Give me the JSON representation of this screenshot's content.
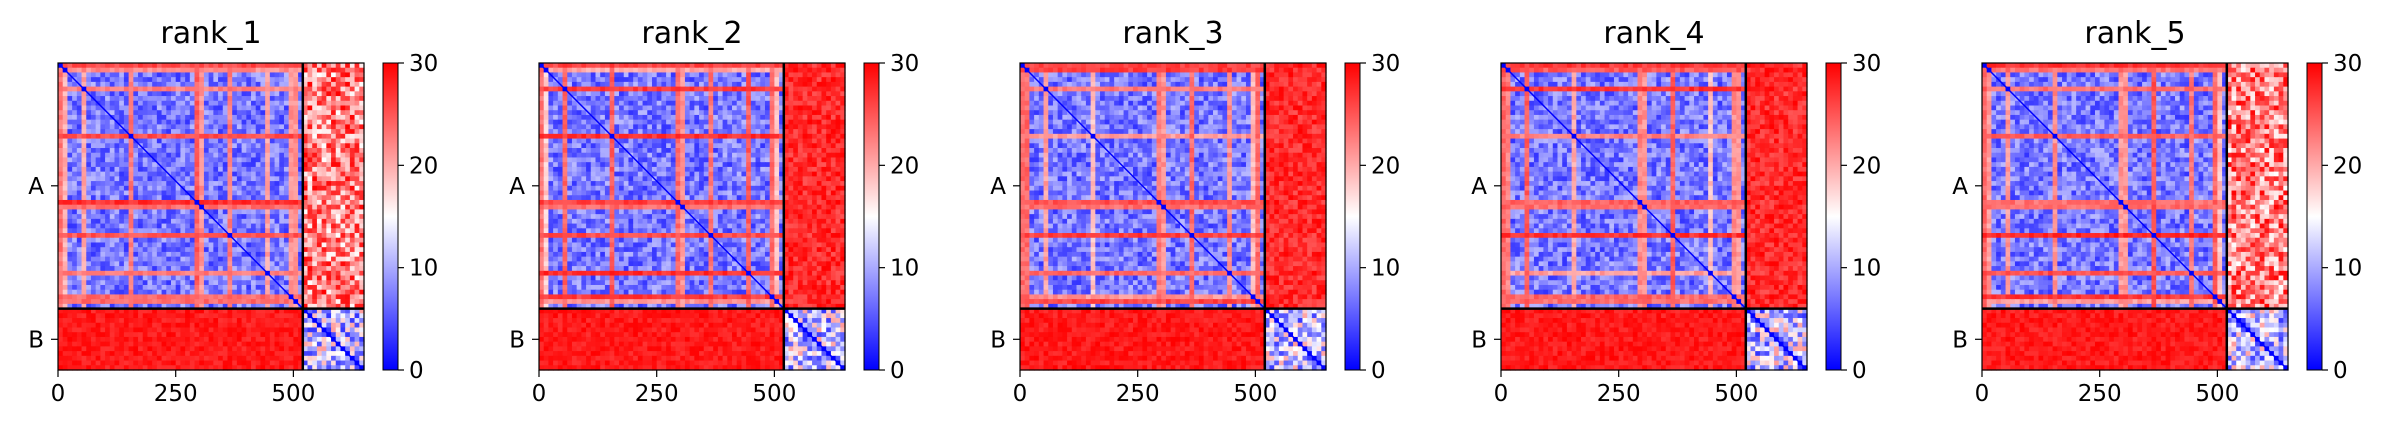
{
  "figure": {
    "background": "#ffffff"
  },
  "chart_data": [
    {
      "type": "heatmap",
      "title": "rank_1",
      "chains": [
        {
          "label": "A",
          "length": 520
        },
        {
          "label": "B",
          "length": 130
        }
      ],
      "x_ticks": [
        0,
        250,
        500
      ],
      "xlim": [
        0,
        650
      ],
      "colorbar": {
        "min": 0,
        "max": 30,
        "ticks": [
          0,
          10,
          20,
          30
        ],
        "colormap": "bwr"
      },
      "inter_chain_level": "high",
      "b_upper_stripes": "mixed"
    },
    {
      "type": "heatmap",
      "title": "rank_2",
      "chains": [
        {
          "label": "A",
          "length": 520
        },
        {
          "label": "B",
          "length": 130
        }
      ],
      "x_ticks": [
        0,
        250,
        500
      ],
      "xlim": [
        0,
        650
      ],
      "colorbar": {
        "min": 0,
        "max": 30,
        "ticks": [
          0,
          10,
          20,
          30
        ],
        "colormap": "bwr"
      },
      "inter_chain_level": "high",
      "b_upper_stripes": "red"
    },
    {
      "type": "heatmap",
      "title": "rank_3",
      "chains": [
        {
          "label": "A",
          "length": 520
        },
        {
          "label": "B",
          "length": 130
        }
      ],
      "x_ticks": [
        0,
        250,
        500
      ],
      "xlim": [
        0,
        650
      ],
      "colorbar": {
        "min": 0,
        "max": 30,
        "ticks": [
          0,
          10,
          20,
          30
        ],
        "colormap": "bwr"
      },
      "inter_chain_level": "high",
      "b_upper_stripes": "red"
    },
    {
      "type": "heatmap",
      "title": "rank_4",
      "chains": [
        {
          "label": "A",
          "length": 520
        },
        {
          "label": "B",
          "length": 130
        }
      ],
      "x_ticks": [
        0,
        250,
        500
      ],
      "xlim": [
        0,
        650
      ],
      "colorbar": {
        "min": 0,
        "max": 30,
        "ticks": [
          0,
          10,
          20,
          30
        ],
        "colormap": "bwr"
      },
      "inter_chain_level": "high",
      "b_upper_stripes": "red"
    },
    {
      "type": "heatmap",
      "title": "rank_5",
      "chains": [
        {
          "label": "A",
          "length": 520
        },
        {
          "label": "B",
          "length": 130
        }
      ],
      "x_ticks": [
        0,
        250,
        500
      ],
      "xlim": [
        0,
        650
      ],
      "colorbar": {
        "min": 0,
        "max": 30,
        "ticks": [
          0,
          10,
          20,
          30
        ],
        "colormap": "bwr"
      },
      "inter_chain_level": "high",
      "b_upper_stripes": "mixed"
    }
  ]
}
